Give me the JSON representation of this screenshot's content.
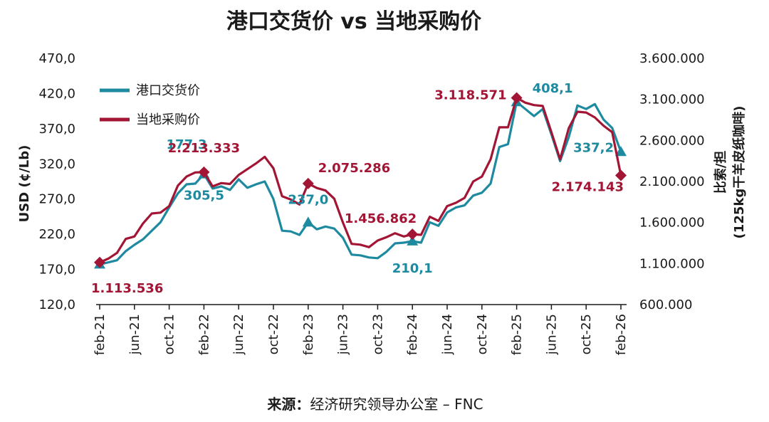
{
  "chart_data": {
    "type": "line",
    "title": "港口交货价 vs 当地采购价",
    "ylabel_left": "USD (¢/Lb)",
    "ylabel_right": [
      "比索/担",
      "(125kg干羊皮纸咖啡)"
    ],
    "ylim_left": [
      120,
      470
    ],
    "ylim_right": [
      600000,
      3600000
    ],
    "y_ticks_left": [
      "120,0",
      "170,0",
      "220,0",
      "270,0",
      "320,0",
      "370,0",
      "420,0",
      "470,0"
    ],
    "y_ticks_right": [
      "600.000",
      "1.100.000",
      "1.600.000",
      "2.100.000",
      "2.600.000",
      "3.100.000",
      "3.600.000"
    ],
    "x_tick_labels": [
      "feb-21",
      "jun-21",
      "oct-21",
      "feb-22",
      "jun-22",
      "oct-22",
      "feb-23",
      "jun-23",
      "oct-23",
      "feb-24",
      "jun-24",
      "oct-24",
      "feb-25",
      "jun-25",
      "oct-25",
      "feb-26"
    ],
    "legend": {
      "placement": "top-left"
    },
    "source_label": "来源：",
    "source_text": "经济研究领导办公室 – FNC",
    "colors": {
      "fob": "#1e8aa0",
      "local": "#a31535"
    },
    "series": [
      {
        "name": "港口交货价",
        "axis": "left",
        "color": "#1e8aa0",
        "x": [
          "feb-21",
          "mar-21",
          "apr-21",
          "may-21",
          "jun-21",
          "jul-21",
          "aug-21",
          "sep-21",
          "oct-21",
          "nov-21",
          "dec-21",
          "jan-22",
          "feb-22",
          "mar-22",
          "apr-22",
          "may-22",
          "jun-22",
          "jul-22",
          "aug-22",
          "sep-22",
          "oct-22",
          "nov-22",
          "dec-22",
          "jan-23",
          "feb-23",
          "mar-23",
          "apr-23",
          "may-23",
          "jun-23",
          "jul-23",
          "aug-23",
          "sep-23",
          "oct-23",
          "nov-23",
          "dec-23",
          "jan-24",
          "feb-24",
          "mar-24",
          "apr-24",
          "may-24",
          "jun-24",
          "jul-24",
          "aug-24",
          "sep-24",
          "oct-24",
          "nov-24",
          "dec-24",
          "jan-25",
          "feb-25",
          "mar-25",
          "apr-25",
          "may-25",
          "jun-25",
          "jul-25",
          "aug-25",
          "sep-25",
          "oct-25",
          "nov-25",
          "dec-25",
          "jan-26",
          "feb-26"
        ],
        "values": [
          177.3,
          180,
          183,
          196,
          205,
          213,
          225,
          237,
          258,
          278,
          291,
          292,
          305.5,
          285,
          288,
          283,
          298,
          286,
          291,
          295,
          270,
          225,
          224,
          219,
          237,
          227,
          231,
          228,
          215,
          191,
          190,
          187,
          186,
          195,
          207,
          208,
          210.1,
          208,
          237,
          232,
          251,
          258,
          261,
          275,
          279,
          292,
          344,
          348,
          408.1,
          398,
          388,
          398,
          362,
          324,
          358,
          403,
          398,
          405,
          383,
          371,
          337.2
        ],
        "markers": [
          0,
          12,
          24,
          36,
          48,
          60
        ]
      },
      {
        "name": "当地采购价",
        "axis": "right",
        "color": "#a31535",
        "x": [
          "feb-21",
          "mar-21",
          "apr-21",
          "may-21",
          "jun-21",
          "jul-21",
          "aug-21",
          "sep-21",
          "oct-21",
          "nov-21",
          "dec-21",
          "jan-22",
          "feb-22",
          "mar-22",
          "apr-22",
          "may-22",
          "jun-22",
          "jul-22",
          "aug-22",
          "sep-22",
          "oct-22",
          "nov-22",
          "dec-22",
          "jan-23",
          "feb-23",
          "mar-23",
          "apr-23",
          "may-23",
          "jun-23",
          "jul-23",
          "aug-23",
          "sep-23",
          "oct-23",
          "nov-23",
          "dec-23",
          "jan-24",
          "feb-24",
          "mar-24",
          "apr-24",
          "may-24",
          "jun-24",
          "jul-24",
          "aug-24",
          "sep-24",
          "oct-24",
          "nov-24",
          "dec-24",
          "jan-25",
          "feb-25",
          "mar-25",
          "apr-25",
          "may-25",
          "jun-25",
          "jul-25",
          "aug-25",
          "sep-25",
          "oct-25",
          "nov-25",
          "dec-25",
          "jan-26",
          "feb-26"
        ],
        "values": [
          1113536,
          1160000,
          1230000,
          1400000,
          1430000,
          1590000,
          1710000,
          1720000,
          1800000,
          2050000,
          2160000,
          2210000,
          2213333,
          2040000,
          2080000,
          2070000,
          2180000,
          2250000,
          2320000,
          2400000,
          2260000,
          1920000,
          1880000,
          1820000,
          2075286,
          2020000,
          1990000,
          1890000,
          1600000,
          1340000,
          1330000,
          1300000,
          1380000,
          1420000,
          1470000,
          1430000,
          1456862,
          1450000,
          1670000,
          1620000,
          1800000,
          1840000,
          1900000,
          2100000,
          2160000,
          2370000,
          2760000,
          2760000,
          3118571,
          3060000,
          3030000,
          3020000,
          2700000,
          2370000,
          2750000,
          2950000,
          2940000,
          2880000,
          2780000,
          2700000,
          2174143
        ],
        "markers": [
          0,
          12,
          24,
          36,
          48,
          60
        ]
      }
    ],
    "annotations": [
      {
        "text": "177,3",
        "series": "fob"
      },
      {
        "text": "305,5",
        "series": "fob"
      },
      {
        "text": "237,0",
        "series": "fob"
      },
      {
        "text": "210,1",
        "series": "fob"
      },
      {
        "text": "408,1",
        "series": "fob"
      },
      {
        "text": "337,2",
        "series": "fob"
      },
      {
        "text": "1.113.536",
        "series": "local"
      },
      {
        "text": "2.213.333",
        "series": "local"
      },
      {
        "text": "2.075.286",
        "series": "local"
      },
      {
        "text": "1.456.862",
        "series": "local"
      },
      {
        "text": "3.118.571",
        "series": "local"
      },
      {
        "text": "2.174.143",
        "series": "local"
      }
    ]
  }
}
